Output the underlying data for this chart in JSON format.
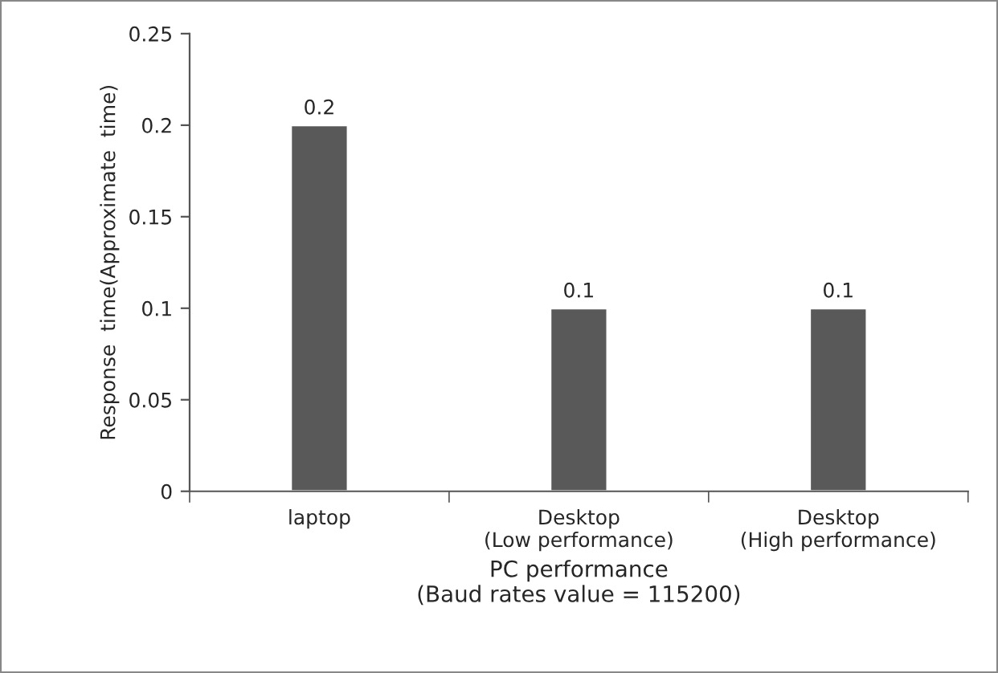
{
  "chart_data": {
    "type": "bar",
    "categories": [
      "laptop",
      "Desktop\n(Low performance)",
      "Desktop\n(High performance)"
    ],
    "values": [
      0.2,
      0.1,
      0.1
    ],
    "color": "#595959",
    "xlabel": "PC performance\n(Baud rates value = 115200)",
    "ylabel": "Response  time(Approximate  time)",
    "ylim": [
      0,
      0.25
    ],
    "yticks": [
      0,
      0.05,
      0.1,
      0.15,
      0.2,
      0.25
    ],
    "data_labels": true,
    "grid": false,
    "legend": false
  }
}
